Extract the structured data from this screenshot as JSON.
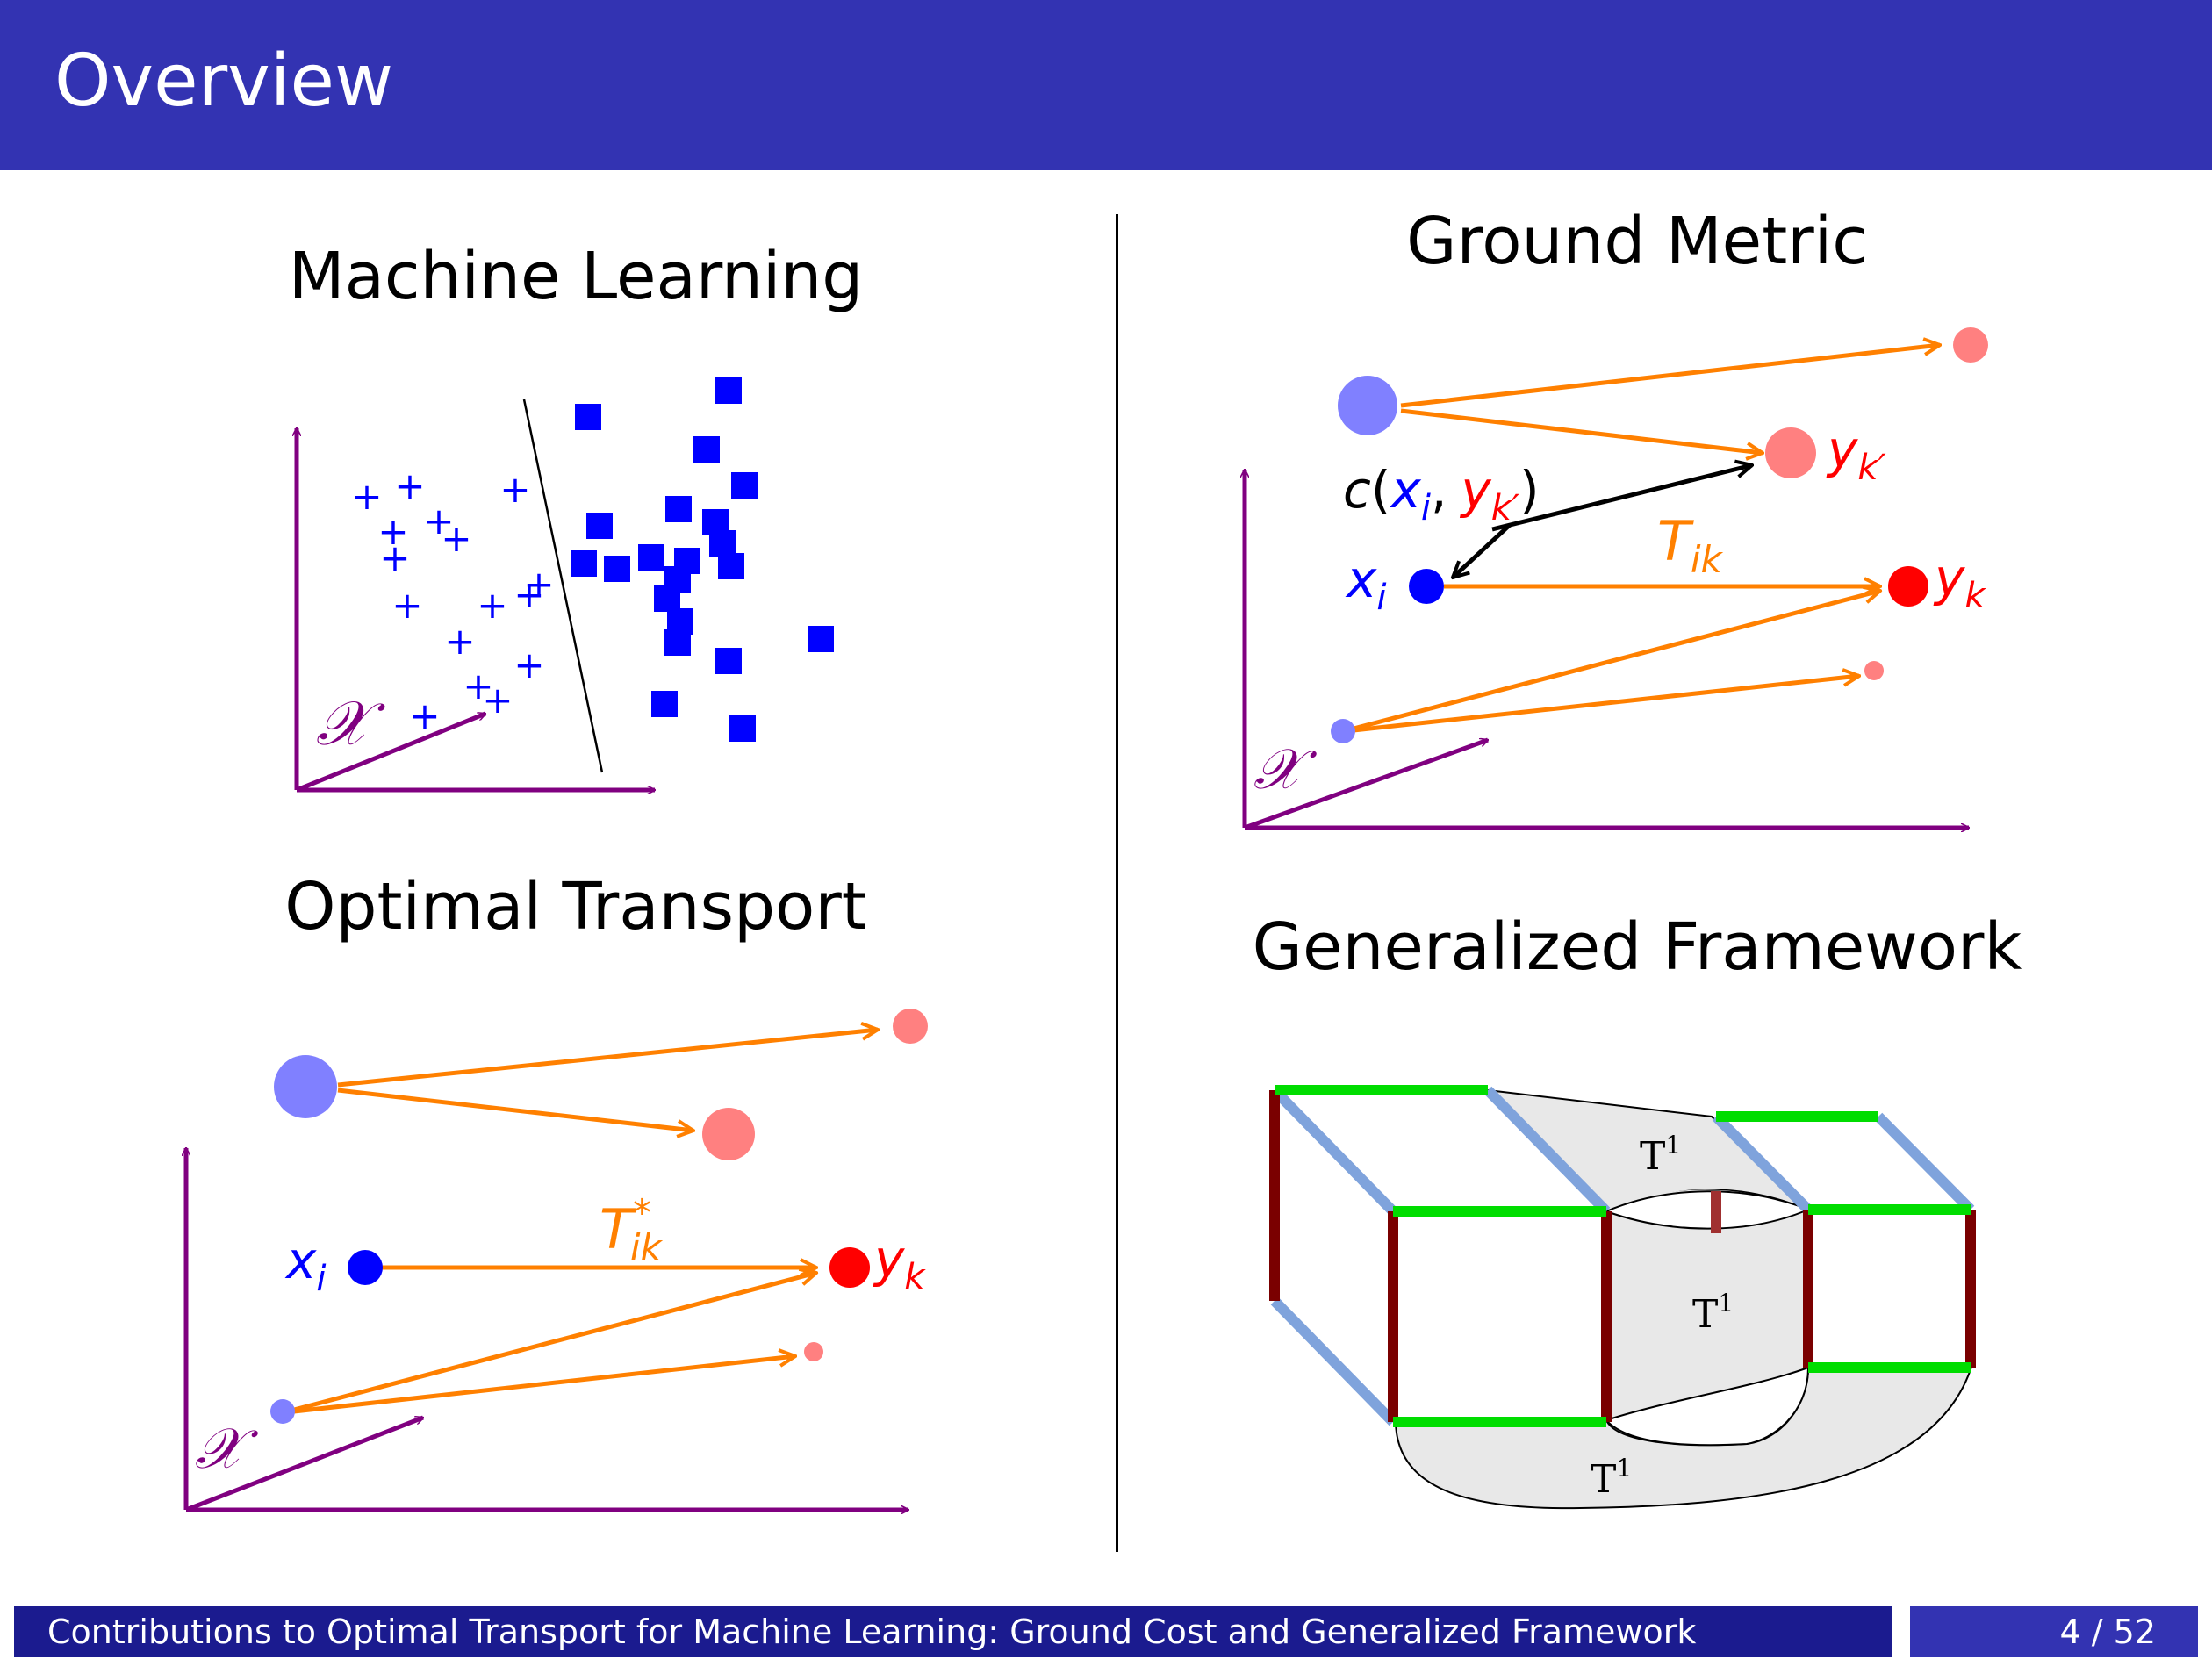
{
  "header": {
    "title": "Overview"
  },
  "panels": {
    "machine_learning": {
      "title": "Machine Learning",
      "axis_label": "𝒳"
    },
    "optimal_transport": {
      "title": "Optimal Transport",
      "axis_label": "𝒳",
      "label_x": "x",
      "label_x_sub": "i",
      "label_y": "y",
      "label_y_sub": "k",
      "label_t": "T",
      "label_t_sup": "*",
      "label_t_sub": "ik"
    },
    "ground_metric": {
      "title": "Ground Metric",
      "axis_label": "𝒳",
      "label_x": "x",
      "label_x_sub": "i",
      "label_y": "y",
      "label_y_sub": "k",
      "label_yp": "y",
      "label_yp_sub": "k′",
      "label_t": "T",
      "label_t_sub": "ik",
      "cost_c": "c",
      "cost_open": "(",
      "cost_x": "x",
      "cost_x_sub": "i",
      "cost_comma": ",",
      "cost_y": "y",
      "cost_y_sub": "k′",
      "cost_close": ")"
    },
    "generalized_framework": {
      "title": "Generalized Framework",
      "t_label": "T",
      "t_sup": "1"
    }
  },
  "colors": {
    "header_bg": "#3333b2",
    "footer_dark": "#1b1b8f",
    "axis": "#800080",
    "arrow": "#ff8000",
    "source": "#8080ff",
    "target": "#ff8080",
    "point_x": "#0000ff",
    "point_y": "#ff0000",
    "class_points": "#0000ff",
    "edge_green": "#00dd00",
    "edge_blue": "#7fa3dc",
    "edge_red": "#7a0000",
    "surface": "#e8e8e8"
  },
  "footer": {
    "title": "Contributions to Optimal Transport for Machine Learning: Ground Cost and Generalized Framework",
    "page": "4 / 52"
  }
}
